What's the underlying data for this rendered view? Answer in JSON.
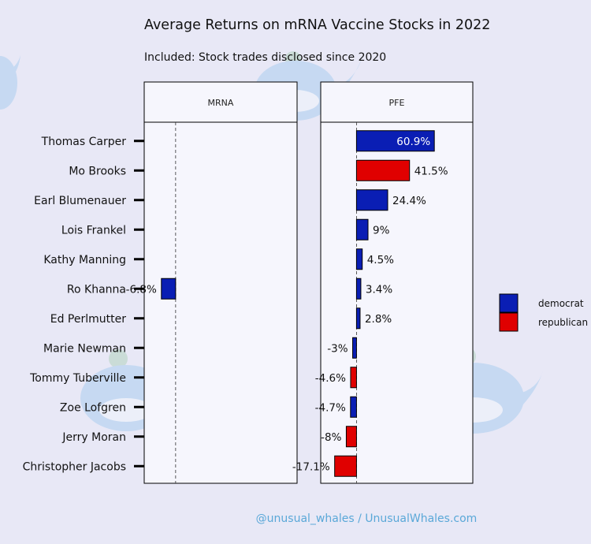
{
  "chart_data": {
    "type": "bar",
    "orientation": "horizontal",
    "title": "Average Returns on mRNA Vaccine Stocks in 2022",
    "subtitle": "Included: Stock trades disclosed since 2020",
    "categories": [
      "Thomas Carper",
      "Mo Brooks",
      "Earl Blumenauer",
      "Lois Frankel",
      "Kathy Manning",
      "Ro Khanna",
      "Ed Perlmutter",
      "Marie Newman",
      "Tommy Tuberville",
      "Zoe Lofgren",
      "Jerry Moran",
      "Christopher Jacobs"
    ],
    "facets": [
      {
        "name": "MRNA",
        "xlim": [
          -15,
          58
        ],
        "bars": [
          {
            "category": "Ro Khanna",
            "value": -6.8,
            "label": "-6.8%",
            "party": "democrat"
          }
        ]
      },
      {
        "name": "PFE",
        "xlim": [
          -28,
          91
        ],
        "bars": [
          {
            "category": "Thomas Carper",
            "value": 60.9,
            "label": "60.9%",
            "party": "democrat"
          },
          {
            "category": "Mo Brooks",
            "value": 41.5,
            "label": "41.5%",
            "party": "republican"
          },
          {
            "category": "Earl Blumenauer",
            "value": 24.4,
            "label": "24.4%",
            "party": "democrat"
          },
          {
            "category": "Lois Frankel",
            "value": 9,
            "label": "9%",
            "party": "democrat"
          },
          {
            "category": "Kathy Manning",
            "value": 4.5,
            "label": "4.5%",
            "party": "democrat"
          },
          {
            "category": "Ro Khanna",
            "value": 3.4,
            "label": "3.4%",
            "party": "democrat"
          },
          {
            "category": "Ed Perlmutter",
            "value": 2.8,
            "label": "2.8%",
            "party": "democrat"
          },
          {
            "category": "Marie Newman",
            "value": -3,
            "label": "-3%",
            "party": "democrat"
          },
          {
            "category": "Tommy Tuberville",
            "value": -4.6,
            "label": "-4.6%",
            "party": "republican"
          },
          {
            "category": "Zoe Lofgren",
            "value": -4.7,
            "label": "-4.7%",
            "party": "democrat"
          },
          {
            "category": "Jerry Moran",
            "value": -8,
            "label": "-8%",
            "party": "republican"
          },
          {
            "category": "Christopher Jacobs",
            "value": -17.1,
            "label": "-17.1%",
            "party": "republican"
          }
        ]
      }
    ],
    "legend": {
      "position": "right",
      "entries": [
        {
          "key": "democrat",
          "label": "democrat",
          "color": "#0a1eb4"
        },
        {
          "key": "republican",
          "label": "republican",
          "color": "#e00000"
        }
      ]
    },
    "reference_line": 0,
    "grid": false
  },
  "credit": "@unusual_whales / UnusualWhales.com"
}
